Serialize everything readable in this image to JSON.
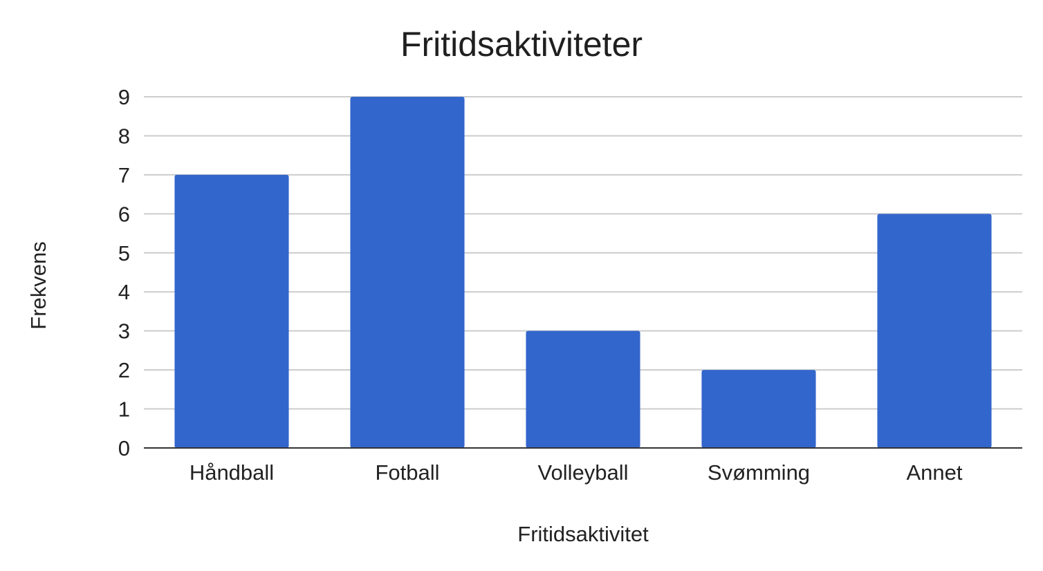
{
  "chart_data": {
    "type": "bar",
    "title": "Fritidsaktiviteter",
    "xlabel": "Fritidsaktivitet",
    "ylabel": "Frekvens",
    "categories": [
      "Håndball",
      "Fotball",
      "Volleyball",
      "Svømming",
      "Annet"
    ],
    "values": [
      7,
      9,
      3,
      2,
      6
    ],
    "ylim": [
      0,
      9
    ],
    "yticks": [
      "0",
      "1",
      "2",
      "3",
      "4",
      "5",
      "6",
      "7",
      "8",
      "9"
    ],
    "grid": true,
    "legend": "none",
    "colors": {
      "bar": "#3366cc",
      "grid": "#cccccc",
      "axis": "#333333",
      "text": "#222222"
    }
  }
}
